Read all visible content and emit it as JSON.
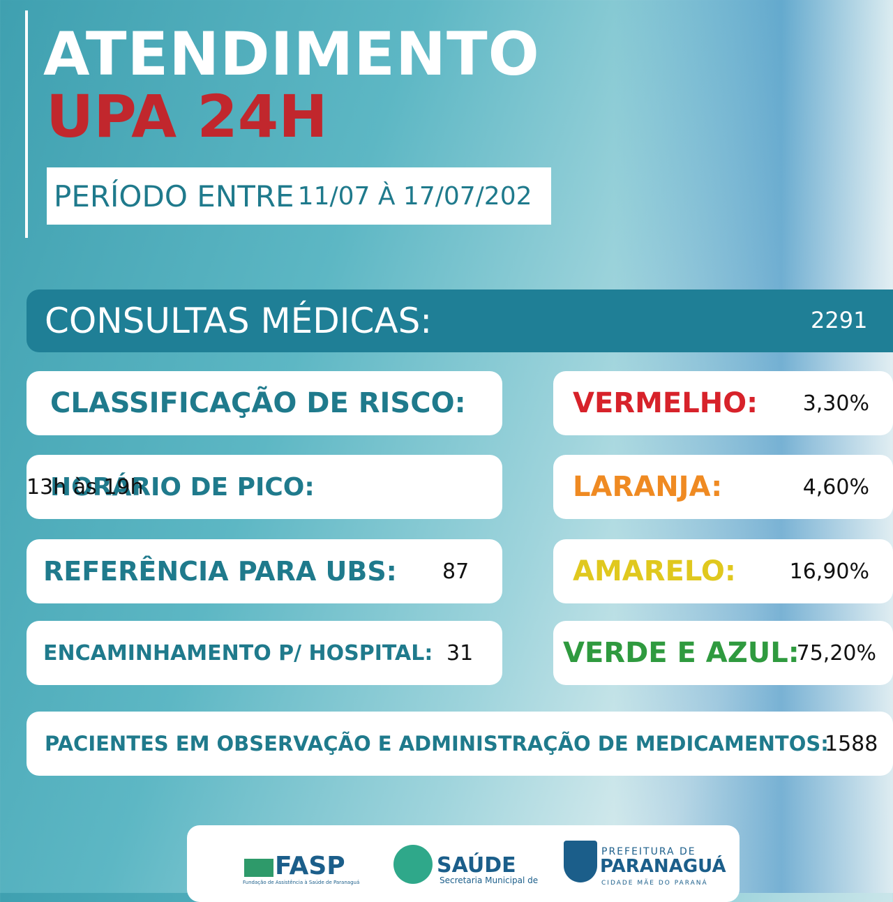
{
  "header": {
    "title": "ATENDIMENTO",
    "subtitle": "UPA 24H",
    "period_label": "PERÍODO ENTRE",
    "period_dates": "11/07 À 17/07/202"
  },
  "consultas": {
    "label": "CONSULTAS MÉDICAS:",
    "value": "2291"
  },
  "left": [
    {
      "label": "CLASSIFICAÇÃO DE RISCO:"
    },
    {
      "label": "HORÁRIO DE PICO:",
      "value": "13h às 19h"
    },
    {
      "label": "REFERÊNCIA PARA UBS:",
      "value": "87"
    },
    {
      "label": "ENCAMINHAMENTO P/ HOSPITAL:",
      "value": "31"
    }
  ],
  "risk": [
    {
      "label": "VERMELHO:",
      "value": "3,30%"
    },
    {
      "label": "LARANJA:",
      "value": "4,60%"
    },
    {
      "label": "AMARELO:",
      "value": "16,90%"
    },
    {
      "label": "VERDE E AZUL:",
      "value": "75,20%"
    }
  ],
  "observacao": {
    "label": "PACIENTES EM OBSERVAÇÃO E ADMINISTRAÇÃO DE MEDICAMENTOS:",
    "value": "1588"
  },
  "logos": {
    "fasp": "FASP",
    "fasp_sub": "Fundação de Assistência à Saúde de Paranaguá",
    "saude": "SAÚDE",
    "saude_sub": "Secretaria Municipal de",
    "pref_top": "PREFEITURA DE",
    "pref_name": "PARANAGUÁ",
    "pref_sub": "CIDADE MÃE DO PARANÁ"
  }
}
